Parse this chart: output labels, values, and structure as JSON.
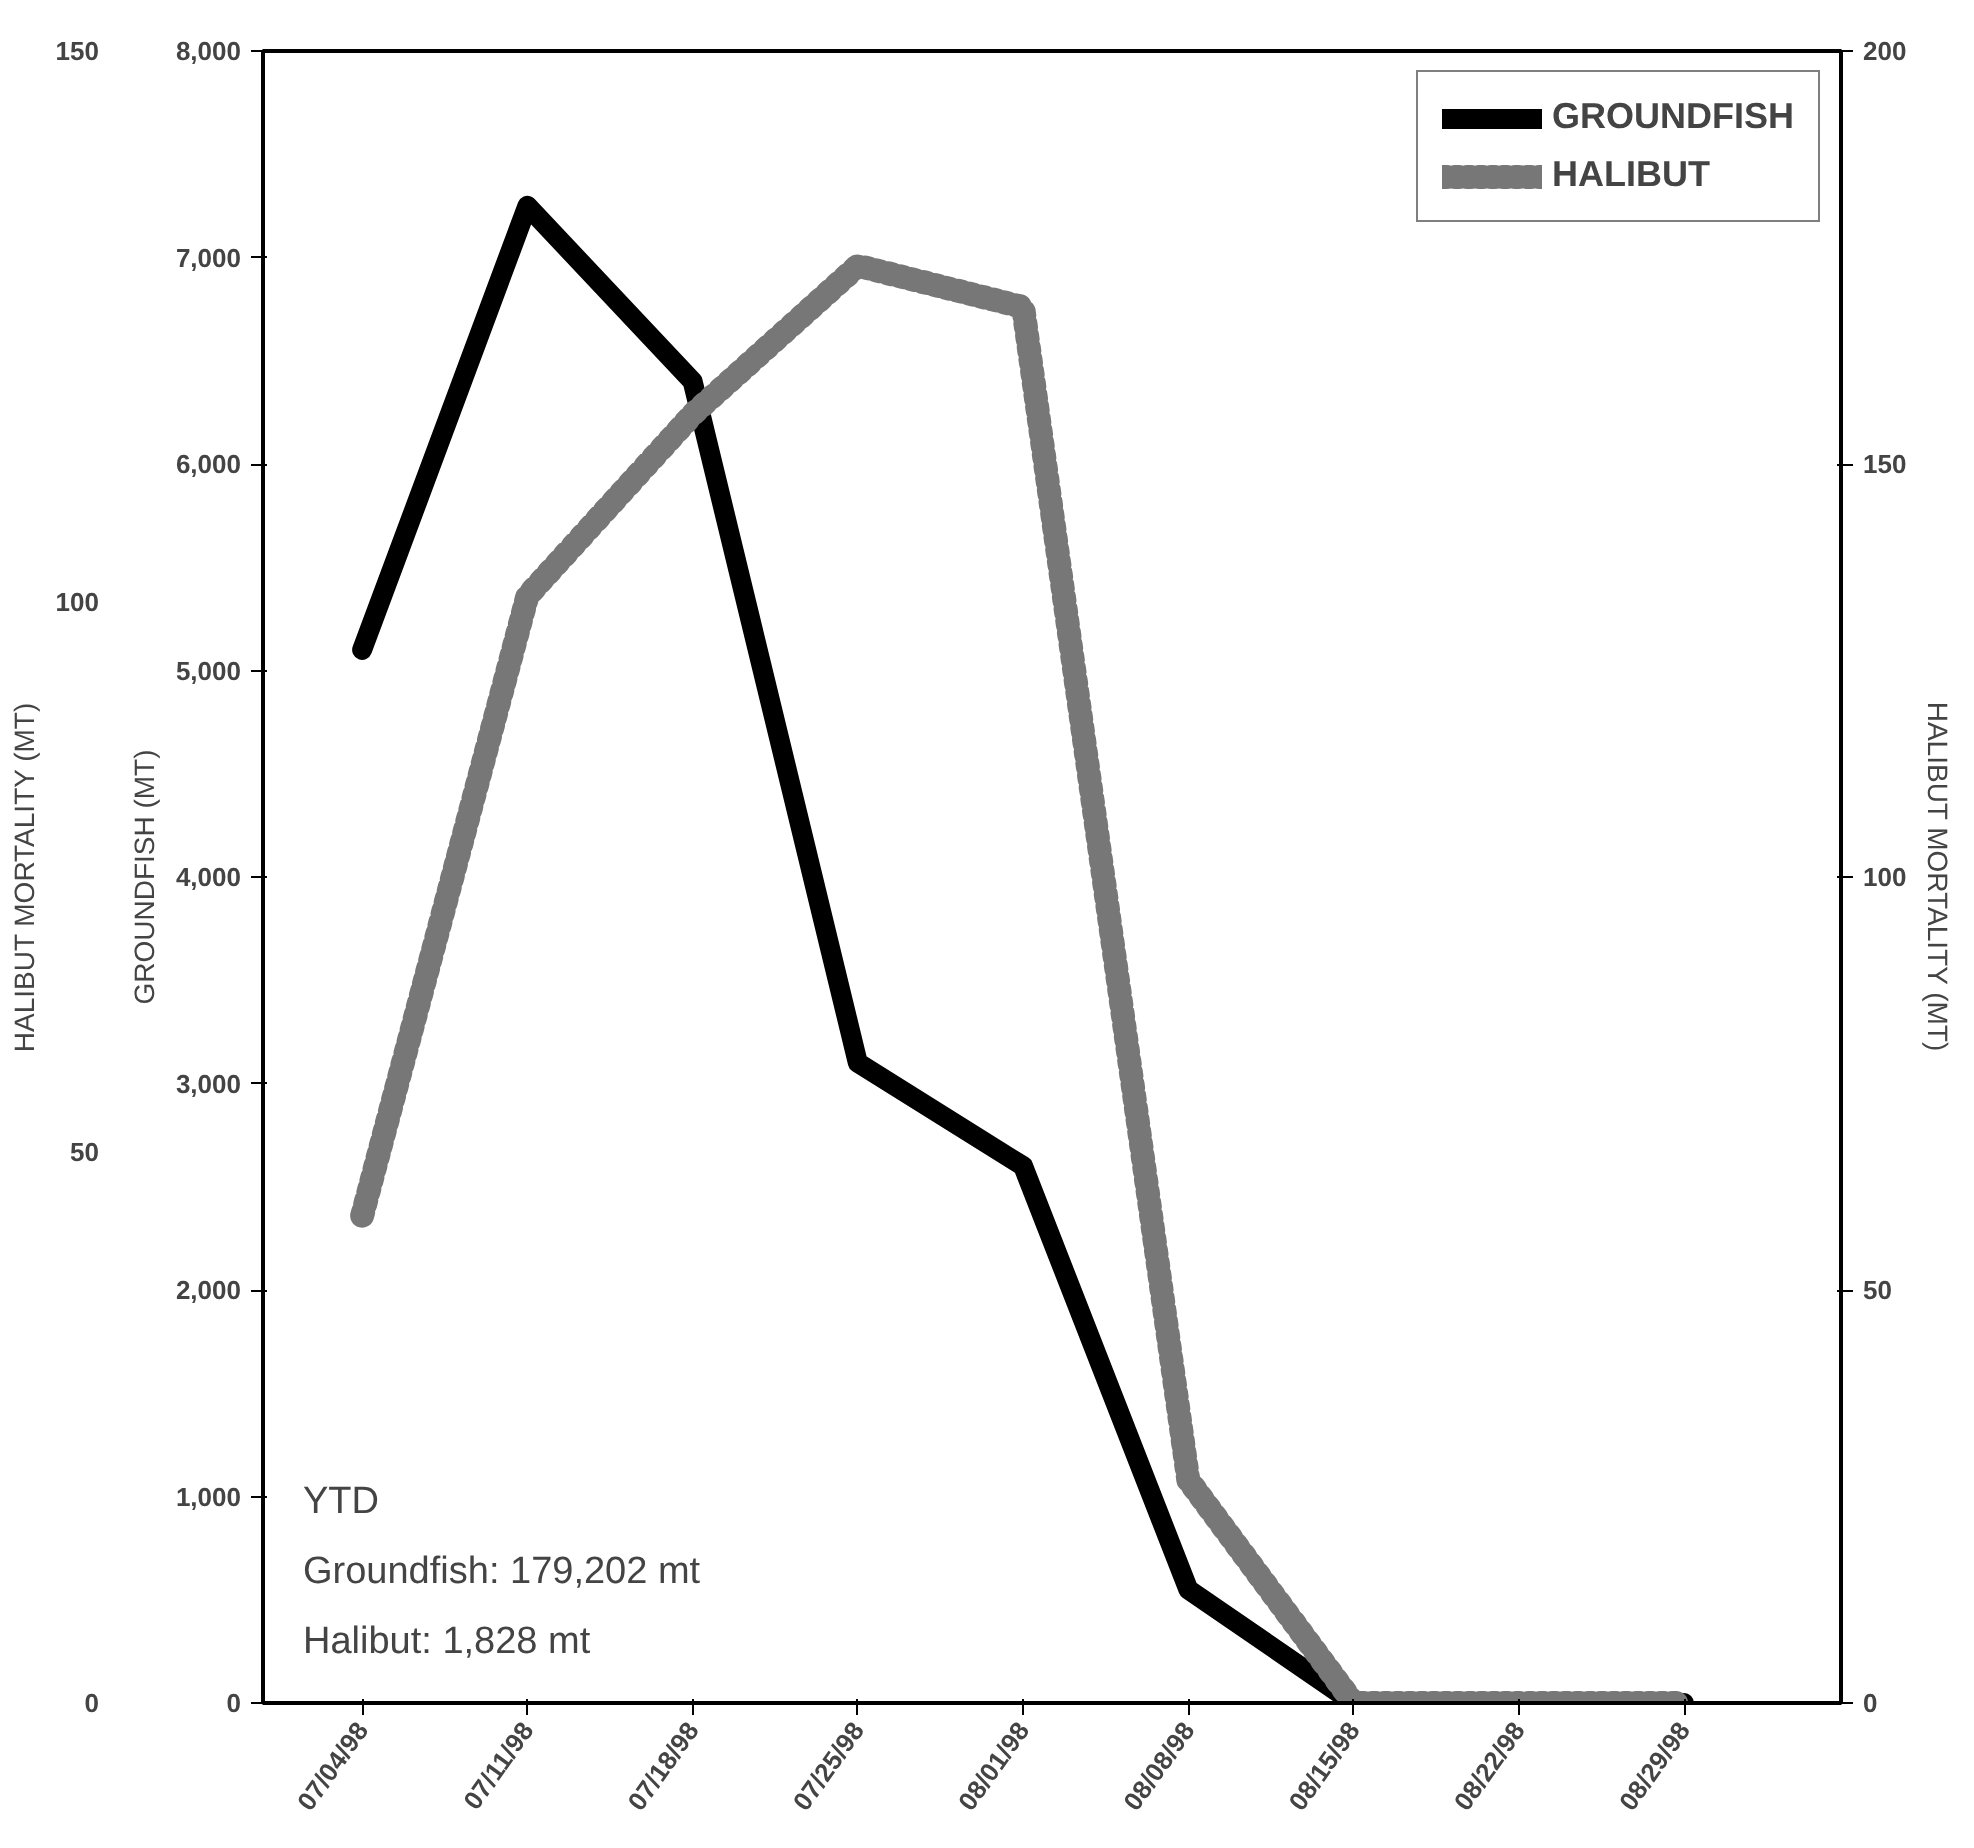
{
  "chart_data": {
    "type": "line",
    "categories": [
      "07/04/98",
      "07/11/98",
      "07/18/98",
      "07/25/98",
      "08/01/98",
      "08/08/98",
      "08/15/98",
      "08/22/98",
      "08/29/98"
    ],
    "series": [
      {
        "name": "GROUNDFISH",
        "color": "#000000",
        "line_style": "solid",
        "values": [
          5100,
          7250,
          6400,
          3100,
          2600,
          550,
          0,
          0,
          0
        ]
      },
      {
        "name": "HALIBUT",
        "color": "#777777",
        "line_style": "dotted",
        "axis": "y2",
        "values": [
          59,
          134,
          156,
          174,
          169,
          27,
          0,
          0,
          0
        ]
      }
    ],
    "ylabel": "GROUNDFISH (MT)",
    "ylim": [
      0,
      8000
    ],
    "yticks": [
      {
        "value": 0,
        "label": "0"
      },
      {
        "value": 1000,
        "label": "1,000"
      },
      {
        "value": 2000,
        "label": "2,000"
      },
      {
        "value": 3000,
        "label": "3,000"
      },
      {
        "value": 4000,
        "label": "4,000"
      },
      {
        "value": 5000,
        "label": "5,000"
      },
      {
        "value": 6000,
        "label": "6,000"
      },
      {
        "value": 7000,
        "label": "7,000"
      },
      {
        "value": 8000,
        "label": "8,000"
      }
    ],
    "y2label": "HALIBUT MORTALITY (MT)",
    "y2lim": [
      0,
      200
    ],
    "y2ticks": [
      0,
      50,
      100,
      150,
      200
    ],
    "y3label": "HALIBUT MORTALITY (MT)",
    "y3lim": [
      0,
      150
    ],
    "y3ticks": [
      0,
      50,
      100,
      150
    ],
    "annotations": [
      "YTD",
      "Groundfish:  179,202 mt",
      "Halibut:  1,828 mt"
    ],
    "legend": "top right",
    "grid": false,
    "marker": "none"
  }
}
